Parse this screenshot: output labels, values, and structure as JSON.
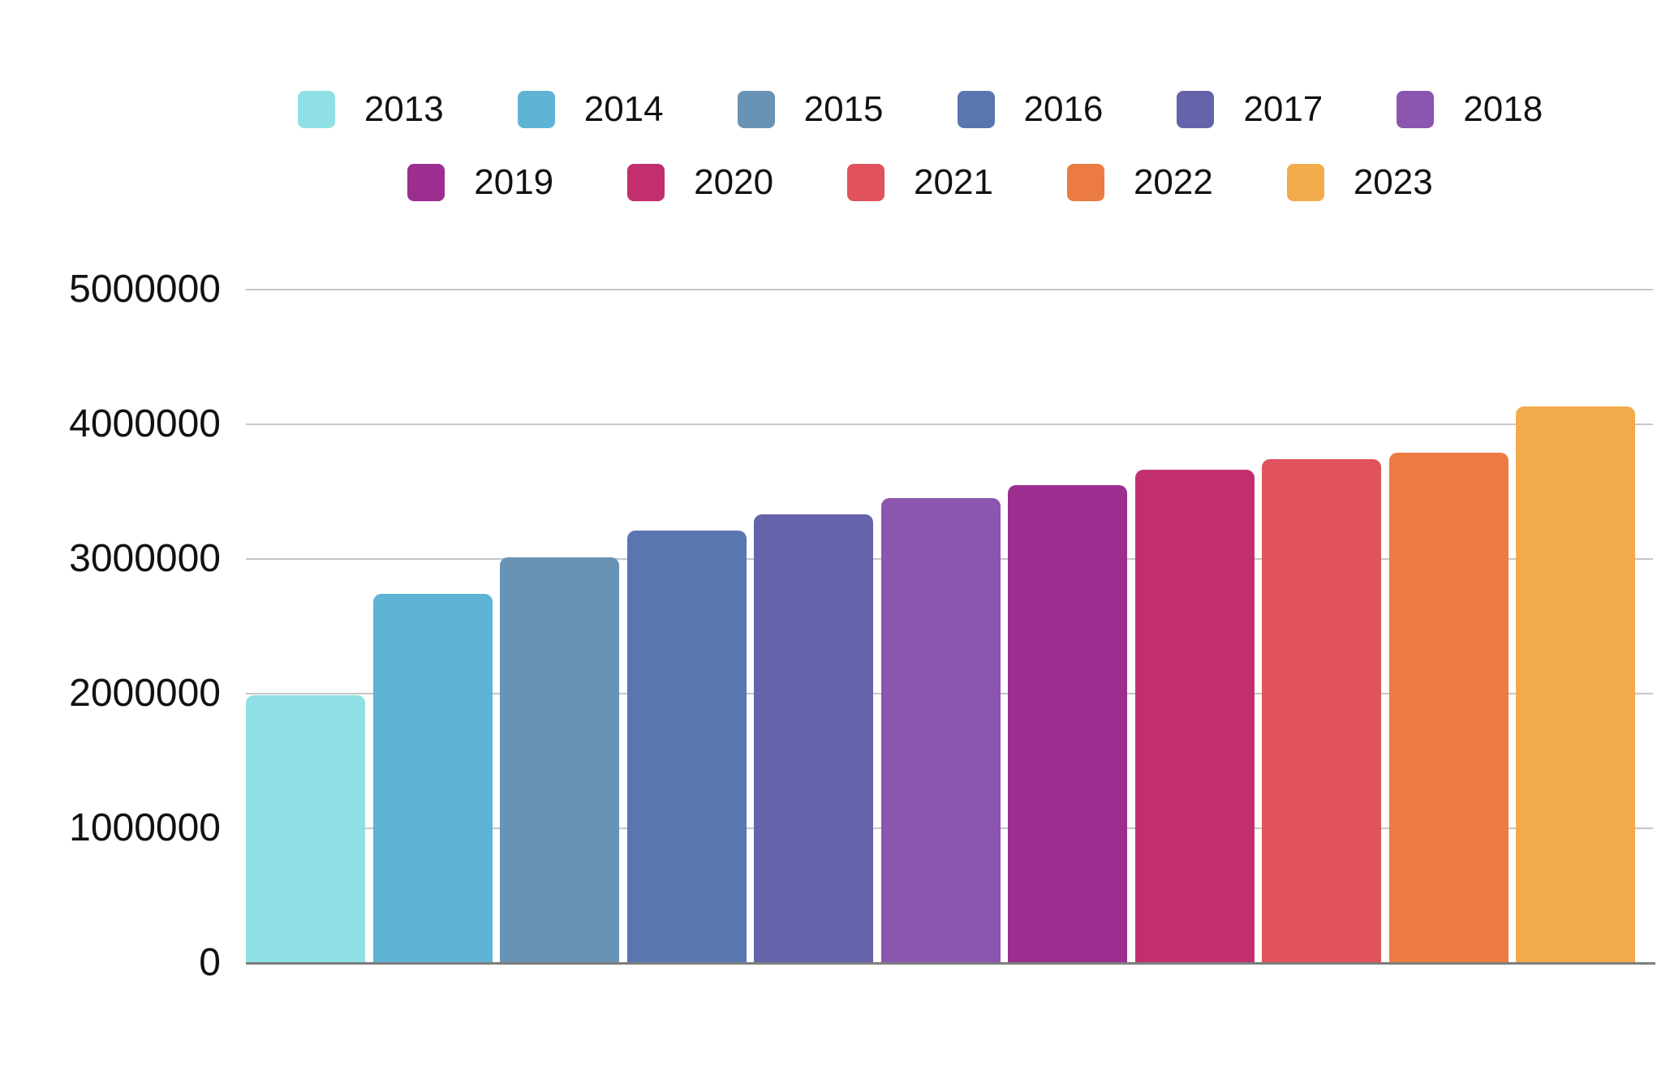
{
  "chart_data": {
    "type": "bar",
    "title": "",
    "xlabel": "",
    "ylabel": "",
    "categories": [
      "2013",
      "2014",
      "2015",
      "2016",
      "2017",
      "2018",
      "2019",
      "2020",
      "2021",
      "2022",
      "2023"
    ],
    "values": [
      1990000,
      2740000,
      3010000,
      3210000,
      3330000,
      3450000,
      3550000,
      3660000,
      3740000,
      3790000,
      4130000
    ],
    "bar_colors": [
      "#8fe0e4",
      "#5fb3d4",
      "#6893b5",
      "#5a76b0",
      "#6563aa",
      "#8b55b0",
      "#9c2e90",
      "#c22f6e",
      "#e0525c",
      "#ec7b41",
      "#f2ab4c"
    ],
    "ylim": [
      0,
      5000000
    ],
    "yticks": [
      0,
      1000000,
      2000000,
      3000000,
      4000000,
      5000000
    ],
    "ytick_labels": [
      "0",
      "1000000",
      "2000000",
      "3000000",
      "4000000",
      "5000000"
    ],
    "grid": "horizontal gridlines at each ytick, drawn behind bars",
    "legend_position": "top",
    "legend_rows": [
      [
        "2013",
        "2014",
        "2015",
        "2016",
        "2017",
        "2018"
      ],
      [
        "2019",
        "2020",
        "2021",
        "2022",
        "2023"
      ]
    ]
  },
  "colors": {
    "background": "#ffffff",
    "gridline": "#c6c6c6",
    "axis_line": "#7d7d7d",
    "text": "#111111"
  }
}
